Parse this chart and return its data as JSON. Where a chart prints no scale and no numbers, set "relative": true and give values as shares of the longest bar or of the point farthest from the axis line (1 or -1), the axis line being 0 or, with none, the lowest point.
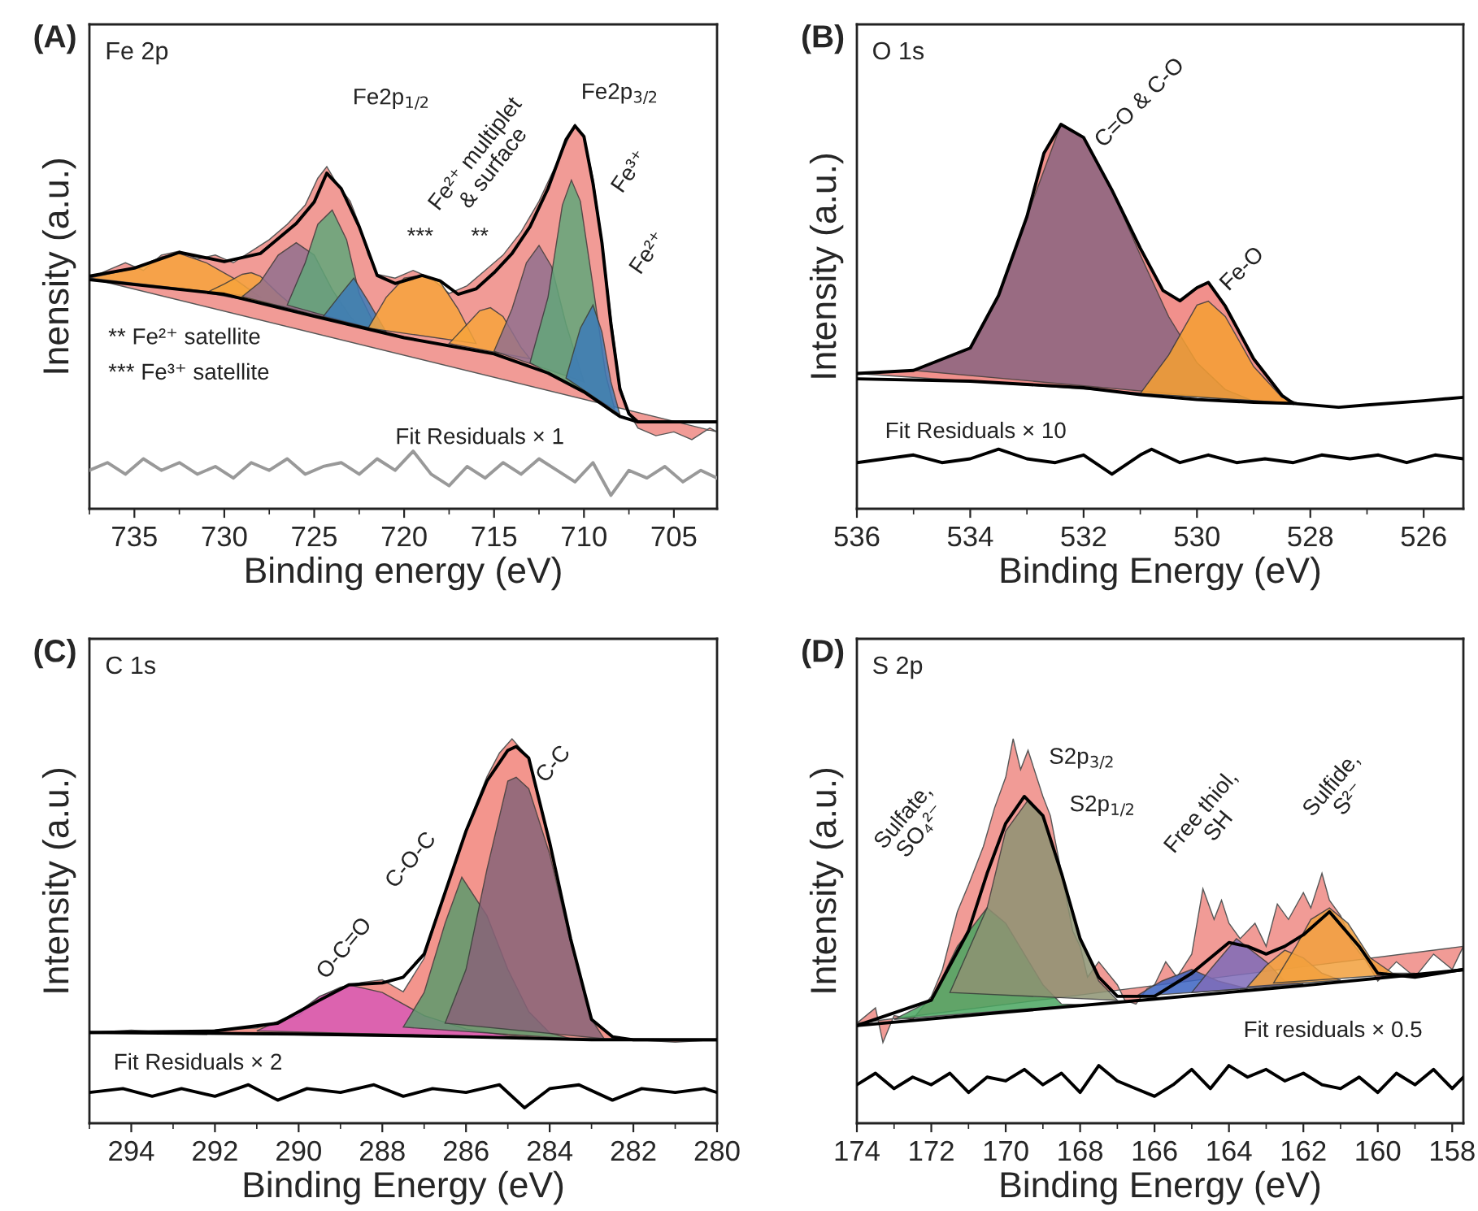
{
  "chart_data": [
    {
      "type": "area",
      "title": "Fe 2p",
      "xlabel": "Binding energy (eV)",
      "ylabel": "Inensity (a.u.)",
      "relative": true,
      "xlim": [
        737.5,
        702.6
      ],
      "xticks": [
        735,
        730,
        725,
        720,
        715,
        710,
        705
      ],
      "series": [
        {
          "type": "line",
          "color": "#000000",
          "x": [
            737.5,
            730,
            725,
            720,
            715,
            712,
            710,
            708,
            707,
            702.6
          ],
          "values": [
            0.596,
            0.558,
            0.501,
            0.445,
            0.403,
            0.353,
            0.304,
            0.24,
            0.226,
            0.226
          ]
        },
        {
          "color": "#ef8a84",
          "x": [
            737.5,
            736.5,
            735.5,
            734.5,
            733.5,
            732.5,
            731.5,
            730.5,
            729.5,
            728.5,
            727.5,
            726.5,
            725.5,
            724.8,
            724.3,
            723.8,
            723,
            722.5,
            722,
            721.5,
            720.5,
            719.5,
            718.5,
            717.5,
            716.5,
            715.5,
            714.5,
            713.5,
            712.5,
            711.5,
            711,
            710.5,
            710,
            709.5,
            709,
            708.5,
            708,
            707.5,
            707,
            706,
            705,
            704,
            703,
            702.6
          ],
          "values": [
            0.6,
            0.62,
            0.64,
            0.62,
            0.66,
            0.67,
            0.65,
            0.66,
            0.64,
            0.67,
            0.7,
            0.74,
            0.79,
            0.86,
            0.89,
            0.85,
            0.8,
            0.74,
            0.66,
            0.61,
            0.6,
            0.62,
            0.6,
            0.56,
            0.58,
            0.62,
            0.66,
            0.72,
            0.8,
            0.9,
            0.95,
            1.0,
            0.97,
            0.86,
            0.7,
            0.5,
            0.32,
            0.25,
            0.21,
            0.19,
            0.2,
            0.18,
            0.21,
            0.2
          ]
        },
        {
          "color": "#f7a43c",
          "x": [
            737.5,
            735,
            733.5,
            732.5,
            731,
            729.5,
            728
          ],
          "values": [
            0.6,
            0.625,
            0.655,
            0.664,
            0.64,
            0.6,
            0.55
          ]
        },
        {
          "color": "#f7a43c",
          "x": [
            731,
            730,
            729,
            728.5,
            728,
            727,
            726
          ],
          "values": [
            0.562,
            0.585,
            0.61,
            0.614,
            0.605,
            0.56,
            0.52
          ]
        },
        {
          "color": "#93708e",
          "x": [
            729,
            728,
            727,
            726,
            725,
            724,
            723,
            722.5
          ],
          "values": [
            0.552,
            0.59,
            0.66,
            0.692,
            0.66,
            0.57,
            0.5,
            0.476
          ]
        },
        {
          "color": "#62a77a",
          "x": [
            726.5,
            725.5,
            724.8,
            724,
            723.2,
            722.5,
            721.5
          ],
          "values": [
            0.53,
            0.64,
            0.74,
            0.777,
            0.7,
            0.56,
            0.465
          ]
        },
        {
          "color": "#3d7bb8",
          "x": [
            724.5,
            723.5,
            722.8,
            722,
            721
          ],
          "values": [
            0.5,
            0.56,
            0.6,
            0.54,
            0.46
          ]
        },
        {
          "color": "#f7a43c",
          "x": [
            722,
            721,
            720,
            719,
            718,
            717,
            716
          ],
          "values": [
            0.47,
            0.55,
            0.6,
            0.607,
            0.59,
            0.52,
            0.43
          ]
        },
        {
          "color": "#f7a43c",
          "x": [
            717.5,
            716.5,
            715.8,
            715.2,
            714.5,
            713.5,
            713
          ],
          "values": [
            0.43,
            0.48,
            0.515,
            0.523,
            0.5,
            0.42,
            0.39
          ]
        },
        {
          "color": "#93708e",
          "x": [
            715,
            714,
            713.2,
            712.5,
            711.8,
            711,
            710
          ],
          "values": [
            0.41,
            0.52,
            0.64,
            0.685,
            0.63,
            0.48,
            0.33
          ]
        },
        {
          "color": "#62a77a",
          "x": [
            713,
            712,
            711.2,
            710.7,
            710.2,
            709.5,
            708.8,
            708.3
          ],
          "values": [
            0.38,
            0.55,
            0.79,
            0.855,
            0.8,
            0.58,
            0.35,
            0.26
          ]
        },
        {
          "color": "#3d7bb8",
          "x": [
            711,
            710.2,
            709.5,
            709,
            708.5,
            708
          ],
          "values": [
            0.34,
            0.47,
            0.53,
            0.46,
            0.33,
            0.245
          ]
        },
        {
          "type": "line",
          "color": "#000000",
          "x": [
            737.5,
            735,
            732.5,
            730,
            728,
            726,
            725,
            724.3,
            723.5,
            722.5,
            721.5,
            720.5,
            719,
            718,
            717,
            716,
            715,
            714,
            713,
            712,
            711,
            710.5,
            710,
            709.5,
            709,
            708.5,
            708,
            707.5,
            707,
            702.6
          ],
          "values": [
            0.605,
            0.626,
            0.667,
            0.643,
            0.664,
            0.742,
            0.798,
            0.873,
            0.833,
            0.734,
            0.607,
            0.586,
            0.607,
            0.593,
            0.558,
            0.572,
            0.614,
            0.664,
            0.734,
            0.833,
            0.96,
            0.996,
            0.968,
            0.847,
            0.692,
            0.48,
            0.311,
            0.247,
            0.226,
            0.226
          ]
        },
        {
          "type": "line",
          "color": "#999999",
          "x": [
            737.5,
            736.5,
            735.5,
            734.5,
            733.5,
            732.5,
            731.5,
            730.5,
            729.5,
            728.5,
            727.5,
            726.5,
            725.5,
            724.5,
            723.5,
            722.5,
            721.5,
            720.5,
            719.5,
            718.5,
            717.5,
            716.5,
            715.5,
            714.5,
            713.5,
            712.5,
            711.5,
            710.5,
            709.5,
            708.5,
            707.5,
            706.5,
            705.5,
            704.5,
            703.5,
            702.6
          ],
          "values": [
            0.1,
            0.12,
            0.09,
            0.13,
            0.1,
            0.12,
            0.09,
            0.11,
            0.08,
            0.12,
            0.1,
            0.13,
            0.09,
            0.11,
            0.12,
            0.09,
            0.13,
            0.1,
            0.15,
            0.09,
            0.06,
            0.11,
            0.08,
            0.12,
            0.09,
            0.13,
            0.1,
            0.07,
            0.12,
            0.035,
            0.1,
            0.08,
            0.11,
            0.07,
            0.1,
            0.08
          ]
        }
      ],
      "annotations": [
        "(A)",
        "Fe2p$_{1/2}$",
        "Fe2p$_{3/2}$",
        "Fe²⁺ multiplet\n& surface",
        "Fe³⁺",
        "Fe²⁺",
        "***",
        "**",
        "** Fe²⁺ satellite",
        "*** Fe³⁺ satellite",
        "Fit Residuals × 1"
      ]
    },
    {
      "type": "area",
      "title": "O 1s",
      "xlabel": "Binding Energy (eV)",
      "ylabel": "Intensity (a.u.)",
      "relative": true,
      "xlim": [
        536,
        525.3
      ],
      "xticks": [
        536,
        534,
        532,
        530,
        528,
        526
      ],
      "series": [
        {
          "type": "line",
          "color": "#000000",
          "x": [
            536,
            534,
            532,
            531,
            530,
            529,
            528.3
          ],
          "values": [
            0.338,
            0.332,
            0.315,
            0.297,
            0.284,
            0.277,
            0.274
          ]
        },
        {
          "color": "#ef7d78",
          "x": [
            536,
            535,
            534,
            533.5,
            533,
            532.7,
            532.4,
            532,
            531.5,
            531,
            530.6,
            530.3,
            530,
            529.8,
            529.5,
            529,
            528.5,
            528.3
          ],
          "values": [
            0.352,
            0.36,
            0.418,
            0.555,
            0.76,
            0.925,
            1.0,
            0.966,
            0.829,
            0.678,
            0.568,
            0.541,
            0.575,
            0.589,
            0.527,
            0.39,
            0.295,
            0.274
          ]
        },
        {
          "color": "#8a6581",
          "x": [
            535,
            534,
            533.5,
            533,
            532.4,
            532,
            531.5,
            531,
            530.5,
            530,
            529.5,
            529
          ],
          "values": [
            0.36,
            0.418,
            0.555,
            0.76,
            1.0,
            0.966,
            0.829,
            0.66,
            0.5,
            0.38,
            0.31,
            0.28
          ]
        },
        {
          "color": "#f5a033",
          "x": [
            531,
            530.5,
            530,
            529.8,
            529.5,
            529,
            528.5,
            528.2
          ],
          "values": [
            0.3,
            0.4,
            0.53,
            0.54,
            0.5,
            0.37,
            0.29,
            0.274
          ]
        },
        {
          "type": "line",
          "color": "#000000",
          "x": [
            536,
            535,
            534,
            533.5,
            533,
            532.7,
            532.4,
            532,
            531.5,
            531,
            530.6,
            530.3,
            530,
            529.8,
            529.5,
            529,
            528.5,
            528.3,
            527.5,
            527,
            526,
            525.3
          ],
          "values": [
            0.352,
            0.36,
            0.418,
            0.555,
            0.76,
            0.925,
            1.0,
            0.966,
            0.829,
            0.678,
            0.568,
            0.541,
            0.575,
            0.589,
            0.527,
            0.39,
            0.295,
            0.274,
            0.264,
            0.27,
            0.281,
            0.29
          ]
        },
        {
          "type": "line",
          "color": "#000000",
          "x": [
            536,
            535.5,
            535,
            534.5,
            534,
            533.5,
            533,
            532.5,
            532,
            531.5,
            531,
            530.8,
            530.3,
            529.8,
            529.3,
            528.8,
            528.3,
            527.8,
            527.3,
            526.8,
            526.3,
            525.8,
            525.3
          ],
          "values": [
            0.12,
            0.13,
            0.14,
            0.12,
            0.13,
            0.155,
            0.13,
            0.12,
            0.14,
            0.09,
            0.14,
            0.155,
            0.12,
            0.14,
            0.12,
            0.13,
            0.12,
            0.14,
            0.13,
            0.14,
            0.12,
            0.14,
            0.13
          ]
        }
      ],
      "annotations": [
        "(B)",
        "C=O & C-O",
        "Fe-O",
        "Fit Residuals × 10"
      ]
    },
    {
      "type": "area",
      "title": "C 1s",
      "xlabel": "Binding Energy (eV)",
      "ylabel": "Intensity (a.u.)",
      "relative": true,
      "xlim": [
        295,
        280
      ],
      "xticks": [
        294,
        292,
        290,
        288,
        286,
        284,
        282,
        280
      ],
      "series": [
        {
          "type": "line",
          "color": "#000000",
          "x": [
            295,
            290,
            286,
            283,
            280
          ],
          "values": [
            0.236,
            0.232,
            0.225,
            0.217,
            0.217
          ]
        },
        {
          "color": "#f1837a",
          "x": [
            295,
            294,
            293,
            292,
            291,
            290,
            289.5,
            289,
            288.5,
            288,
            287.5,
            287,
            286.5,
            286,
            285.5,
            285.2,
            284.9,
            284.5,
            284,
            283.5,
            283,
            282.5,
            282,
            281,
            280
          ],
          "values": [
            0.236,
            0.242,
            0.236,
            0.242,
            0.248,
            0.28,
            0.329,
            0.354,
            0.366,
            0.373,
            0.342,
            0.429,
            0.602,
            0.764,
            0.901,
            0.963,
            1.0,
            0.95,
            0.727,
            0.478,
            0.267,
            0.224,
            0.217,
            0.211,
            0.217
          ]
        },
        {
          "color": "#d95bb5",
          "x": [
            291,
            290,
            289.5,
            288.8,
            288,
            287,
            286,
            285,
            284
          ],
          "values": [
            0.24,
            0.29,
            0.33,
            0.36,
            0.34,
            0.28,
            0.245,
            0.228,
            0.221
          ]
        },
        {
          "color": "#5d9a6d",
          "x": [
            287.5,
            287,
            286.5,
            286.1,
            285.5,
            285,
            284.5,
            284,
            283.5
          ],
          "values": [
            0.25,
            0.34,
            0.52,
            0.64,
            0.54,
            0.4,
            0.29,
            0.235,
            0.22
          ]
        },
        {
          "color": "#876479",
          "x": [
            286.5,
            286,
            285.5,
            285,
            284.8,
            284.5,
            284,
            283.5,
            283,
            282.7
          ],
          "values": [
            0.26,
            0.4,
            0.66,
            0.89,
            0.9,
            0.87,
            0.7,
            0.47,
            0.27,
            0.22
          ]
        },
        {
          "type": "line",
          "color": "#000000",
          "x": [
            295,
            292,
            290.5,
            289.5,
            288.8,
            288,
            287.5,
            287,
            286.5,
            286,
            285.5,
            285,
            284.8,
            284.5,
            284,
            283.5,
            283,
            282.5,
            282,
            280
          ],
          "values": [
            0.236,
            0.24,
            0.26,
            0.32,
            0.36,
            0.365,
            0.38,
            0.44,
            0.6,
            0.76,
            0.89,
            0.97,
            0.98,
            0.95,
            0.73,
            0.48,
            0.27,
            0.225,
            0.217,
            0.217
          ]
        },
        {
          "type": "line",
          "color": "#000000",
          "x": [
            295,
            294.2,
            293.5,
            292.8,
            292,
            291.2,
            290.5,
            289.8,
            289,
            288.2,
            287.5,
            286.8,
            286,
            285.2,
            284.6,
            284,
            283.3,
            282.5,
            281.8,
            281,
            280.3,
            280
          ],
          "values": [
            0.08,
            0.09,
            0.07,
            0.09,
            0.07,
            0.1,
            0.06,
            0.09,
            0.08,
            0.1,
            0.07,
            0.09,
            0.08,
            0.1,
            0.04,
            0.09,
            0.1,
            0.06,
            0.09,
            0.08,
            0.09,
            0.08
          ]
        }
      ],
      "annotations": [
        "(C)",
        "O-C=O",
        "C-O-C",
        "C-C",
        "Fit Residuals × 2"
      ]
    },
    {
      "type": "area",
      "title": "S 2p",
      "xlabel": "Binding Energy (eV)",
      "ylabel": "Intensity (a.u.)",
      "relative": true,
      "xlim": [
        174,
        157.7
      ],
      "xticks": [
        174,
        172,
        170,
        168,
        166,
        164,
        162,
        160,
        158
      ],
      "series": [
        {
          "type": "line",
          "color": "#000000",
          "x": [
            174,
            170,
            166,
            162,
            157.7
          ],
          "values": [
            0.254,
            0.289,
            0.323,
            0.358,
            0.399
          ]
        },
        {
          "color": "#ef8a84",
          "x": [
            174,
            173.5,
            173.3,
            173,
            172.5,
            172,
            171.7,
            171.3,
            171,
            170.6,
            170.3,
            170,
            169.8,
            169.6,
            169.4,
            169,
            168.8,
            168.5,
            168.2,
            168,
            167.8,
            167.5,
            167,
            166.8,
            166.5,
            166.2,
            166,
            165.7,
            165.4,
            165,
            164.7,
            164.4,
            164.2,
            164,
            163.7,
            163.3,
            163,
            162.7,
            162.4,
            162,
            161.8,
            161.5,
            161.3,
            161,
            160.7,
            160.3,
            160,
            159.5,
            159,
            158.5,
            158,
            157.7
          ],
          "values": [
            0.26,
            0.3,
            0.21,
            0.28,
            0.27,
            0.33,
            0.4,
            0.55,
            0.62,
            0.72,
            0.82,
            0.9,
            1.0,
            0.92,
            0.97,
            0.85,
            0.8,
            0.65,
            0.5,
            0.46,
            0.38,
            0.42,
            0.36,
            0.32,
            0.31,
            0.35,
            0.36,
            0.42,
            0.38,
            0.44,
            0.61,
            0.53,
            0.58,
            0.52,
            0.48,
            0.52,
            0.46,
            0.57,
            0.53,
            0.6,
            0.56,
            0.65,
            0.58,
            0.54,
            0.47,
            0.42,
            0.37,
            0.42,
            0.38,
            0.44,
            0.4,
            0.46
          ]
        },
        {
          "color": "#49a660",
          "x": [
            173,
            172,
            171.3,
            170.5,
            170,
            169.5,
            169,
            168.5,
            168
          ],
          "values": [
            0.27,
            0.32,
            0.46,
            0.56,
            0.52,
            0.44,
            0.36,
            0.31,
            0.308
          ]
        },
        {
          "color": "#8e9373",
          "x": [
            171.5,
            170.5,
            170,
            169.4,
            169,
            168.5,
            168,
            167.5,
            167
          ],
          "values": [
            0.34,
            0.56,
            0.76,
            0.84,
            0.8,
            0.65,
            0.48,
            0.37,
            0.32
          ]
        },
        {
          "color": "#3b63c2",
          "x": [
            166.5,
            165.8,
            165,
            164.3,
            163.5
          ],
          "values": [
            0.33,
            0.37,
            0.4,
            0.37,
            0.35
          ]
        },
        {
          "color": "#7f6cb9",
          "x": [
            165,
            164.5,
            163.8,
            163,
            162.5,
            162
          ],
          "values": [
            0.34,
            0.4,
            0.48,
            0.42,
            0.37,
            0.362
          ]
        },
        {
          "color": "#f3a13d",
          "x": [
            163.5,
            163,
            162.5,
            162,
            161.5,
            161
          ],
          "values": [
            0.355,
            0.41,
            0.45,
            0.43,
            0.39,
            0.372
          ]
        },
        {
          "color": "#f3a13d",
          "x": [
            162.8,
            162.2,
            161.8,
            161.3,
            160.8,
            160.2,
            159.6,
            159
          ],
          "values": [
            0.365,
            0.46,
            0.53,
            0.56,
            0.52,
            0.43,
            0.39,
            0.39
          ]
        },
        {
          "type": "line",
          "color": "#000000",
          "x": [
            174,
            172,
            171,
            170.5,
            170,
            169.5,
            169,
            168.5,
            168,
            167.5,
            167,
            166,
            165,
            164,
            163.5,
            163,
            162.5,
            162,
            161.3,
            160.5,
            160,
            159,
            157.7
          ],
          "values": [
            0.254,
            0.32,
            0.5,
            0.65,
            0.78,
            0.85,
            0.8,
            0.65,
            0.48,
            0.38,
            0.33,
            0.33,
            0.39,
            0.47,
            0.46,
            0.44,
            0.46,
            0.49,
            0.55,
            0.46,
            0.39,
            0.38,
            0.4
          ]
        },
        {
          "type": "line",
          "color": "#000000",
          "x": [
            174,
            173.5,
            173,
            172.5,
            172,
            171.5,
            171,
            170.5,
            170,
            169.5,
            169,
            168.5,
            168,
            167.5,
            167,
            166.5,
            166,
            165.5,
            165,
            164.5,
            164,
            163.5,
            163,
            162.5,
            162,
            161.5,
            161,
            160.5,
            160,
            159.5,
            159,
            158.5,
            158,
            157.7
          ],
          "values": [
            0.1,
            0.13,
            0.09,
            0.12,
            0.1,
            0.13,
            0.08,
            0.12,
            0.11,
            0.14,
            0.1,
            0.13,
            0.08,
            0.15,
            0.11,
            0.09,
            0.07,
            0.1,
            0.14,
            0.09,
            0.15,
            0.12,
            0.14,
            0.11,
            0.13,
            0.1,
            0.09,
            0.12,
            0.08,
            0.13,
            0.1,
            0.14,
            0.09,
            0.12
          ]
        }
      ],
      "annotations": [
        "(D)",
        "Sulfate,\nSO₄²⁻",
        "S2p$_{3/2}$",
        "S2p$_{1/2}$",
        "Free thiol,\nSH",
        "Sulfide,\nS²⁻",
        "Fit residuals × 0.5"
      ]
    }
  ]
}
